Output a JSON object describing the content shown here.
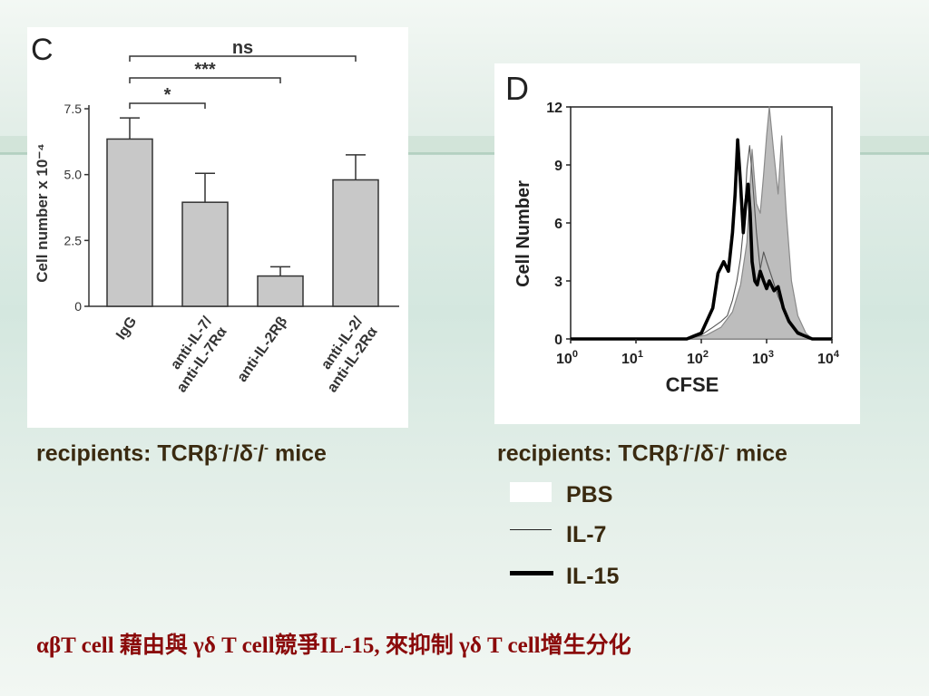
{
  "captions": {
    "left": {
      "prefix": "recipients: TCRβ",
      "sup1": "-",
      "mid1": "/",
      "sup2": "-",
      "mid2": "/δ",
      "sup3": "-",
      "mid3": "/",
      "sup4": "-",
      "suffix": " mice"
    },
    "right": {
      "prefix": "recipients: TCRβ",
      "sup1": "-",
      "mid1": "/",
      "sup2": "-",
      "mid2": "/δ",
      "sup3": "-",
      "mid3": "/",
      "sup4": "-",
      "suffix": " mice"
    }
  },
  "legend": [
    {
      "label": "PBS",
      "style": "white-fill"
    },
    {
      "label": "IL-7",
      "style": "thin-line"
    },
    {
      "label": "IL-15",
      "style": "thick-line"
    }
  ],
  "footer": "αβT cell 藉由與 γδ T cell競爭IL-15, 來抑制 γδ T cell增生分化",
  "colors": {
    "footer": "#8a0a0a",
    "caption": "#3a2a10",
    "bar": "#c8c8c8",
    "pbs_fill": "#bdbdbd",
    "il7_line": "#555555",
    "il15_line": "#000000"
  },
  "chart_data": [
    {
      "type": "bar",
      "panel_label": "C",
      "ylabel": "Cell number x 10⁻⁴",
      "ylim": [
        0,
        7.5
      ],
      "yticks": [
        "0",
        "2.5",
        "5.0",
        "7.5"
      ],
      "ytick_values": [
        0,
        2.5,
        5.0,
        7.5
      ],
      "categories": [
        "IgG",
        "anti-IL-7/\nanti-IL-7Rα",
        "anti-IL-2Rβ",
        "anti-IL-2/\nanti-IL-2Rα"
      ],
      "values": [
        6.35,
        3.95,
        1.15,
        4.8
      ],
      "errors": [
        0.8,
        1.1,
        0.35,
        0.95
      ],
      "significance": [
        {
          "from": 0,
          "to": 1,
          "label": "*"
        },
        {
          "from": 0,
          "to": 2,
          "label": "***"
        },
        {
          "from": 0,
          "to": 3,
          "label": "ns"
        }
      ],
      "grid": false
    },
    {
      "type": "line",
      "panel_label": "D",
      "ylabel": "Cell Number",
      "xlabel": "CFSE",
      "x_scale": "log",
      "xlim": [
        1,
        10000
      ],
      "ylim": [
        0,
        12
      ],
      "yticks": [
        "0",
        "3",
        "6",
        "9",
        "12"
      ],
      "ytick_values": [
        0,
        3,
        6,
        9,
        12
      ],
      "xticks": [
        {
          "base": "10",
          "exp": "0",
          "value": 1
        },
        {
          "base": "10",
          "exp": "1",
          "value": 10
        },
        {
          "base": "10",
          "exp": "2",
          "value": 100
        },
        {
          "base": "10",
          "exp": "3",
          "value": 1000
        },
        {
          "base": "10",
          "exp": "4",
          "value": 10000
        }
      ],
      "series": [
        {
          "name": "PBS",
          "style": "filled-gray",
          "x": [
            1,
            10,
            60,
            120,
            200,
            300,
            400,
            500,
            600,
            700,
            800,
            900,
            1000,
            1100,
            1300,
            1500,
            1700,
            2000,
            2400,
            3000,
            4000,
            5000,
            10000
          ],
          "y": [
            0,
            0,
            0,
            0.2,
            0.6,
            1.4,
            2.8,
            5.0,
            9.8,
            7.0,
            6.5,
            8.5,
            10.5,
            12.0,
            9.5,
            7.5,
            10.5,
            6.5,
            3.0,
            1.2,
            0.3,
            0,
            0
          ]
        },
        {
          "name": "IL-7",
          "style": "thin-line",
          "x": [
            1,
            10,
            60,
            100,
            150,
            200,
            250,
            300,
            350,
            400,
            450,
            500,
            550,
            600,
            700,
            800,
            900,
            1000,
            1200,
            1500,
            2000,
            3000,
            5000,
            10000
          ],
          "y": [
            0,
            0,
            0,
            0.2,
            0.6,
            0.9,
            1.2,
            2.0,
            3.0,
            4.2,
            6.0,
            8.8,
            10.0,
            8.5,
            5.5,
            3.6,
            4.5,
            4.0,
            3.2,
            2.2,
            1.2,
            0.4,
            0,
            0
          ]
        },
        {
          "name": "IL-15",
          "style": "thick-line",
          "x": [
            1,
            10,
            60,
            100,
            150,
            180,
            220,
            260,
            300,
            330,
            360,
            400,
            440,
            480,
            520,
            560,
            600,
            660,
            720,
            800,
            900,
            1000,
            1100,
            1300,
            1500,
            1800,
            2200,
            3000,
            5000,
            10000
          ],
          "y": [
            0,
            0,
            0,
            0.3,
            1.6,
            3.4,
            4.0,
            3.5,
            5.5,
            7.5,
            10.3,
            8.0,
            5.5,
            7.0,
            8.0,
            6.5,
            4.0,
            3.0,
            2.8,
            3.5,
            3.0,
            2.6,
            3.0,
            2.5,
            2.7,
            1.6,
            0.9,
            0.3,
            0,
            0
          ]
        }
      ],
      "grid": false
    }
  ]
}
